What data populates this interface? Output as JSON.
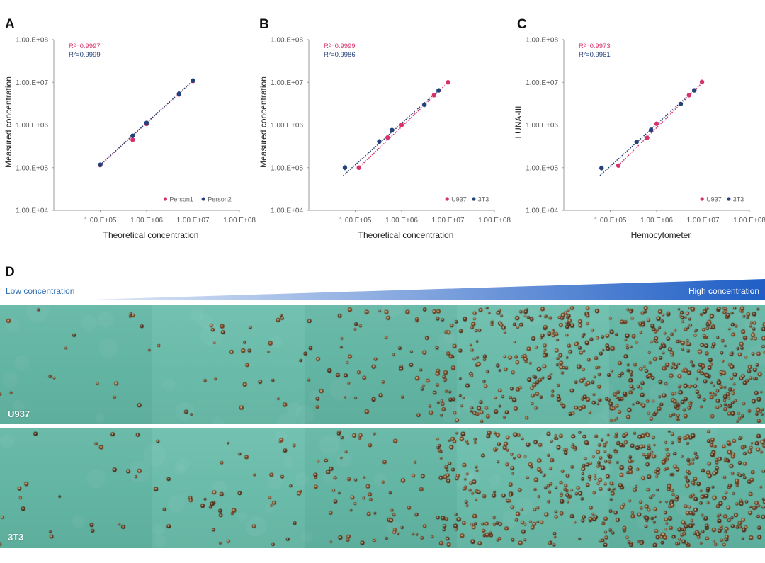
{
  "colors": {
    "pink": "#d6336c",
    "navy": "#24417a",
    "axis": "#9a9a9a",
    "tick_text": "#555555",
    "grad_start": "#dfe8f6",
    "grad_end": "#1f5ec5"
  },
  "panel_letters": [
    "A",
    "B",
    "C"
  ],
  "chart_data": [
    {
      "type": "scatter",
      "xscale": "log",
      "yscale": "log",
      "xlim": [
        10000,
        100000000
      ],
      "ylim": [
        10000,
        100000000
      ],
      "xticks": [
        "1.00.E+05",
        "1.00.E+06",
        "1.00.E+07",
        "1.00.E+08"
      ],
      "yticks": [
        "1.00.E+04",
        "1.00.E+05",
        "1.00.E+06",
        "1.00.E+07",
        "1.00.E+08"
      ],
      "xlabel": "Theoretical concentration",
      "ylabel": "Measured concentration",
      "annotations": [
        {
          "label": "R²=0.9997",
          "series": 0
        },
        {
          "label": "R²=0.9999",
          "series": 1
        }
      ],
      "legend_position": "bottom-right",
      "series": [
        {
          "name": "Person1",
          "color": "#d6336c",
          "points": [
            [
              100000,
              115000,
              0.02,
              0.02
            ],
            [
              500000,
              450000,
              0.02,
              0.03
            ],
            [
              1000000,
              1060000,
              0.02,
              0.02
            ],
            [
              5000000,
              5200000,
              0.02,
              0.02
            ],
            [
              10000000,
              10800000,
              0.02,
              0.02
            ]
          ],
          "fit": [
            [
              100000,
              115000
            ],
            [
              10000000,
              10800000
            ]
          ]
        },
        {
          "name": "Person2",
          "color": "#24417a",
          "points": [
            [
              100000,
              117000,
              0.02,
              0.02
            ],
            [
              500000,
              560000,
              0.02,
              0.03
            ],
            [
              1000000,
              1120000,
              0.02,
              0.03
            ],
            [
              5000000,
              5400000,
              0.02,
              0.03
            ],
            [
              10000000,
              11000000,
              0.02,
              0.03
            ]
          ],
          "fit": [
            [
              100000,
              117000
            ],
            [
              10000000,
              11000000
            ]
          ]
        }
      ]
    },
    {
      "type": "scatter",
      "xscale": "log",
      "yscale": "log",
      "xlim": [
        10000,
        100000000
      ],
      "ylim": [
        10000,
        100000000
      ],
      "xticks": [
        "1.00.E+05",
        "1.00.E+06",
        "1.00.E+07",
        "1.00.E+08"
      ],
      "yticks": [
        "1.00.E+04",
        "1.00.E+05",
        "1.00.E+06",
        "1.00.E+07",
        "1.00.E+08"
      ],
      "xlabel": "Theoretical concentration",
      "ylabel": "Measured concentration",
      "annotations": [
        {
          "label": "R²=0.9999",
          "series": 0
        },
        {
          "label": "R²=0.9986",
          "series": 1
        }
      ],
      "legend_position": "bottom-right",
      "series": [
        {
          "name": "U937",
          "color": "#d6336c",
          "points": [
            [
              120000,
              100000,
              0.04,
              0.03
            ],
            [
              500000,
              510000,
              0.03,
              0.03
            ],
            [
              1000000,
              1000000,
              0.02,
              0.02
            ],
            [
              5000000,
              5000000,
              0.02,
              0.02
            ],
            [
              10000000,
              10000000,
              0.02,
              0.02
            ]
          ],
          "fit": [
            [
              110000,
              92000
            ],
            [
              10500000,
              10500000
            ]
          ]
        },
        {
          "name": "3T3",
          "color": "#24417a",
          "points": [
            [
              60000,
              100000,
              0.03,
              0.07
            ],
            [
              330000,
              410000,
              0.03,
              0.06
            ],
            [
              620000,
              760000,
              0.03,
              0.06
            ],
            [
              3100000,
              3000000,
              0.03,
              0.06
            ],
            [
              6300000,
              6500000,
              0.02,
              0.04
            ]
          ],
          "fit": [
            [
              55000,
              65000
            ],
            [
              6500000,
              6800000
            ]
          ]
        }
      ]
    },
    {
      "type": "scatter",
      "xscale": "log",
      "yscale": "log",
      "xlim": [
        10000,
        100000000
      ],
      "ylim": [
        10000,
        100000000
      ],
      "xticks": [
        "1.00.E+05",
        "1.00.E+06",
        "1.00.E+07",
        "1.00.E+08"
      ],
      "yticks": [
        "1.00.E+04",
        "1.00.E+05",
        "1.00.E+06",
        "1.00.E+07",
        "1.00.E+08"
      ],
      "xlabel": "Hemocytometer",
      "ylabel": "LUNA-III",
      "annotations": [
        {
          "label": "R²=0.9973",
          "series": 0
        },
        {
          "label": "R²=0.9961",
          "series": 1
        }
      ],
      "legend_position": "bottom-right",
      "series": [
        {
          "name": "U937",
          "color": "#d6336c",
          "points": [
            [
              150000,
              112000,
              0.04,
              0.02
            ],
            [
              620000,
              500000,
              0.06,
              0.05
            ],
            [
              1000000,
              1070000,
              0.03,
              0.02
            ],
            [
              5000000,
              5000000,
              0.03,
              0.03
            ],
            [
              9500000,
              10200000,
              0.02,
              0.02
            ]
          ],
          "fit": [
            [
              140000,
              105000
            ],
            [
              10000000,
              10200000
            ]
          ]
        },
        {
          "name": "3T3",
          "color": "#24417a",
          "points": [
            [
              65000,
              98000,
              0.05,
              0.06
            ],
            [
              370000,
              400000,
              0.04,
              0.04
            ],
            [
              760000,
              770000,
              0.04,
              0.05
            ],
            [
              3300000,
              3100000,
              0.03,
              0.05
            ],
            [
              6500000,
              6500000,
              0.02,
              0.03
            ]
          ],
          "fit": [
            [
              60000,
              65000
            ],
            [
              6800000,
              6900000
            ]
          ]
        }
      ]
    }
  ],
  "panel_d": {
    "letter": "D",
    "low_label": "Low concentration",
    "high_label": "High concentration",
    "rows": [
      {
        "label": "U937",
        "cell_count_per_segment": [
          9,
          16,
          28,
          52,
          150,
          190,
          260
        ]
      },
      {
        "label": "3T3",
        "cell_count_per_segment": [
          14,
          22,
          34,
          60,
          145,
          200,
          250
        ]
      }
    ]
  }
}
